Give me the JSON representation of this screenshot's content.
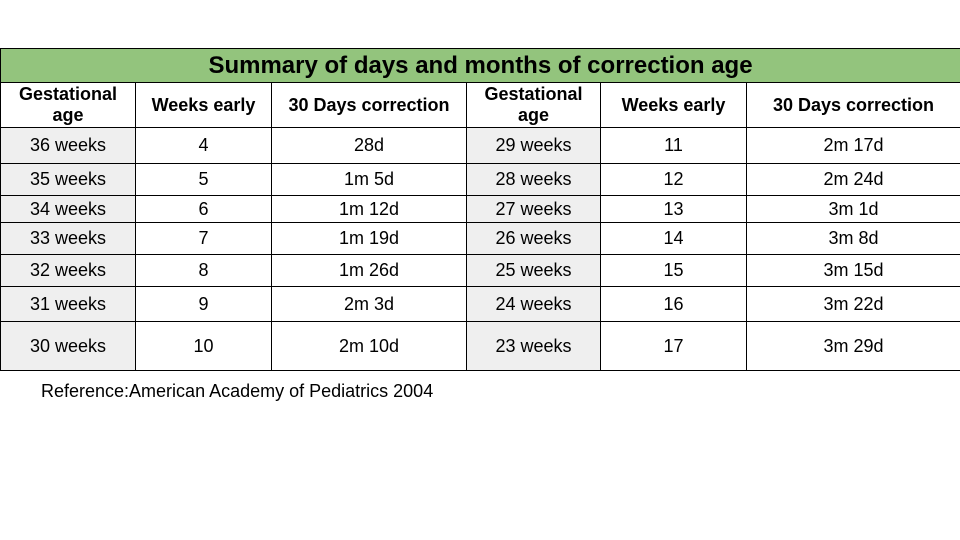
{
  "table": {
    "title": "Summary of days and months of correction age",
    "headers": [
      "Gestational age",
      "Weeks early",
      "30 Days correction",
      "Gestational age",
      "Weeks early",
      "30 Days correction"
    ],
    "rows": [
      [
        "36 weeks",
        "4",
        "28d",
        "29 weeks",
        "11",
        "2m 17d"
      ],
      [
        "35 weeks",
        "5",
        "1m 5d",
        "28 weeks",
        "12",
        "2m 24d"
      ],
      [
        "34 weeks",
        "6",
        "1m 12d",
        "27 weeks",
        "13",
        "3m 1d"
      ],
      [
        "33 weeks",
        "7",
        "1m 19d",
        "26 weeks",
        "14",
        "3m 8d"
      ],
      [
        "32 weeks",
        "8",
        "1m 26d",
        "25 weeks",
        "15",
        "3m 15d"
      ],
      [
        "31 weeks",
        "9",
        "2m 3d",
        "24 weeks",
        "16",
        "3m 22d"
      ],
      [
        "30 weeks",
        "10",
        "2m 10d",
        "23 weeks",
        "17",
        "3m 29d"
      ]
    ],
    "colors": {
      "title_bg": "#93c47d",
      "gestational_bg": "#efefef"
    }
  },
  "reference": "Reference:American Academy of Pediatrics 2004"
}
